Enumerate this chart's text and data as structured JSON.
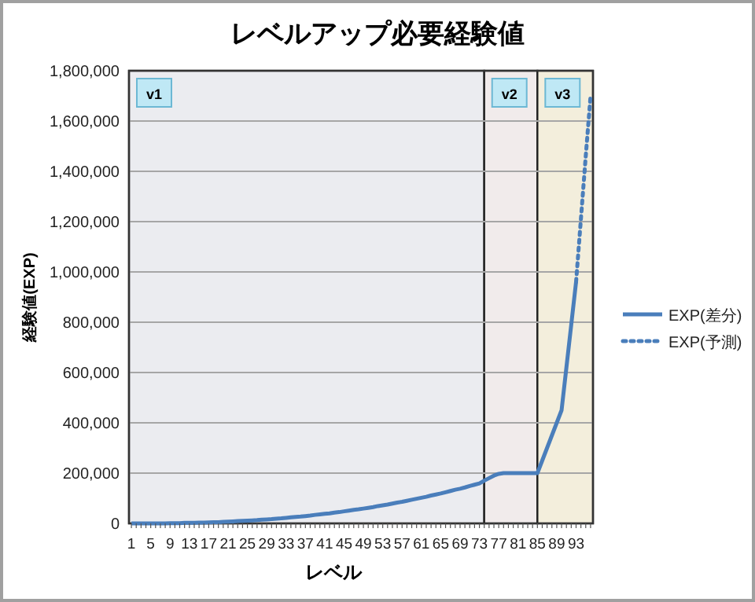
{
  "chart_data": {
    "type": "line",
    "title": "レベルアップ必要経験値",
    "xlabel": "レベル",
    "ylabel": "経験値(EXP)",
    "x": [
      1,
      2,
      3,
      4,
      5,
      6,
      7,
      8,
      9,
      10,
      11,
      12,
      13,
      14,
      15,
      16,
      17,
      18,
      19,
      20,
      21,
      22,
      23,
      24,
      25,
      26,
      27,
      28,
      29,
      30,
      31,
      32,
      33,
      34,
      35,
      36,
      37,
      38,
      39,
      40,
      41,
      42,
      43,
      44,
      45,
      46,
      47,
      48,
      49,
      50,
      51,
      52,
      53,
      54,
      55,
      56,
      57,
      58,
      59,
      60,
      61,
      62,
      63,
      64,
      65,
      66,
      67,
      68,
      69,
      70,
      71,
      72,
      73,
      74,
      75,
      76,
      77,
      78,
      79,
      80,
      81,
      82,
      83,
      84,
      85,
      86,
      87,
      88,
      89,
      90,
      91,
      92,
      93
    ],
    "series": [
      {
        "name": "EXP(差分)",
        "color": "#4a7ebb",
        "line_style": "solid",
        "values": [
          0,
          0,
          0,
          0,
          0,
          0,
          0,
          0,
          1000,
          1000,
          1000,
          2000,
          2000,
          2000,
          3000,
          3000,
          4000,
          5000,
          5000,
          6000,
          7000,
          8000,
          9000,
          10000,
          11000,
          12000,
          13000,
          15000,
          16000,
          17000,
          19000,
          20000,
          22000,
          24000,
          26000,
          27000,
          29000,
          31000,
          34000,
          36000,
          38000,
          40000,
          43000,
          45000,
          48000,
          51000,
          54000,
          56000,
          59000,
          62000,
          65000,
          69000,
          72000,
          75000,
          79000,
          83000,
          86000,
          90000,
          94000,
          98000,
          102000,
          106000,
          111000,
          115000,
          119000,
          124000,
          129000,
          134000,
          138000,
          143000,
          149000,
          154000,
          159000,
          170000,
          180000,
          190000,
          197000,
          200000,
          200000,
          200000,
          200000,
          200000,
          200000,
          200000,
          200000,
          250000,
          300000,
          350000,
          400000,
          450000,
          620000,
          790000,
          960000
        ]
      },
      {
        "name": "EXP(予測)",
        "color": "#4a7ebb",
        "line_style": "dotted",
        "x": [
          93,
          94,
          95,
          96
        ],
        "values": [
          960000,
          1210000,
          1460000,
          1700000
        ]
      }
    ],
    "xlim": [
      0.5,
      96.5
    ],
    "xticks": [
      1,
      5,
      9,
      13,
      17,
      21,
      25,
      29,
      33,
      37,
      41,
      45,
      49,
      53,
      57,
      61,
      65,
      69,
      73,
      77,
      81,
      85,
      89,
      93
    ],
    "ylim": [
      0,
      1800000
    ],
    "yticks": [
      {
        "value": 0,
        "label": "0"
      },
      {
        "value": 200000,
        "label": "200,000"
      },
      {
        "value": 400000,
        "label": "400,000"
      },
      {
        "value": 600000,
        "label": "600,000"
      },
      {
        "value": 800000,
        "label": "800,000"
      },
      {
        "value": 1000000,
        "label": "1,000,000"
      },
      {
        "value": 1200000,
        "label": "1,200,000"
      },
      {
        "value": 1400000,
        "label": "1,400,000"
      },
      {
        "value": 1600000,
        "label": "1,600,000"
      },
      {
        "value": 1800000,
        "label": "1,800,000"
      }
    ],
    "bands": [
      {
        "axis": "x",
        "from": 0.5,
        "to": 74,
        "label": "v1",
        "color": "#ebecf0"
      },
      {
        "axis": "x",
        "from": 74,
        "to": 85,
        "label": "v2",
        "color": "#f1ebeb"
      },
      {
        "axis": "x",
        "from": 85,
        "to": 96.5,
        "label": "v3",
        "color": "#f3eedc"
      }
    ],
    "grid": "y",
    "legend": "right",
    "marker": "none"
  }
}
